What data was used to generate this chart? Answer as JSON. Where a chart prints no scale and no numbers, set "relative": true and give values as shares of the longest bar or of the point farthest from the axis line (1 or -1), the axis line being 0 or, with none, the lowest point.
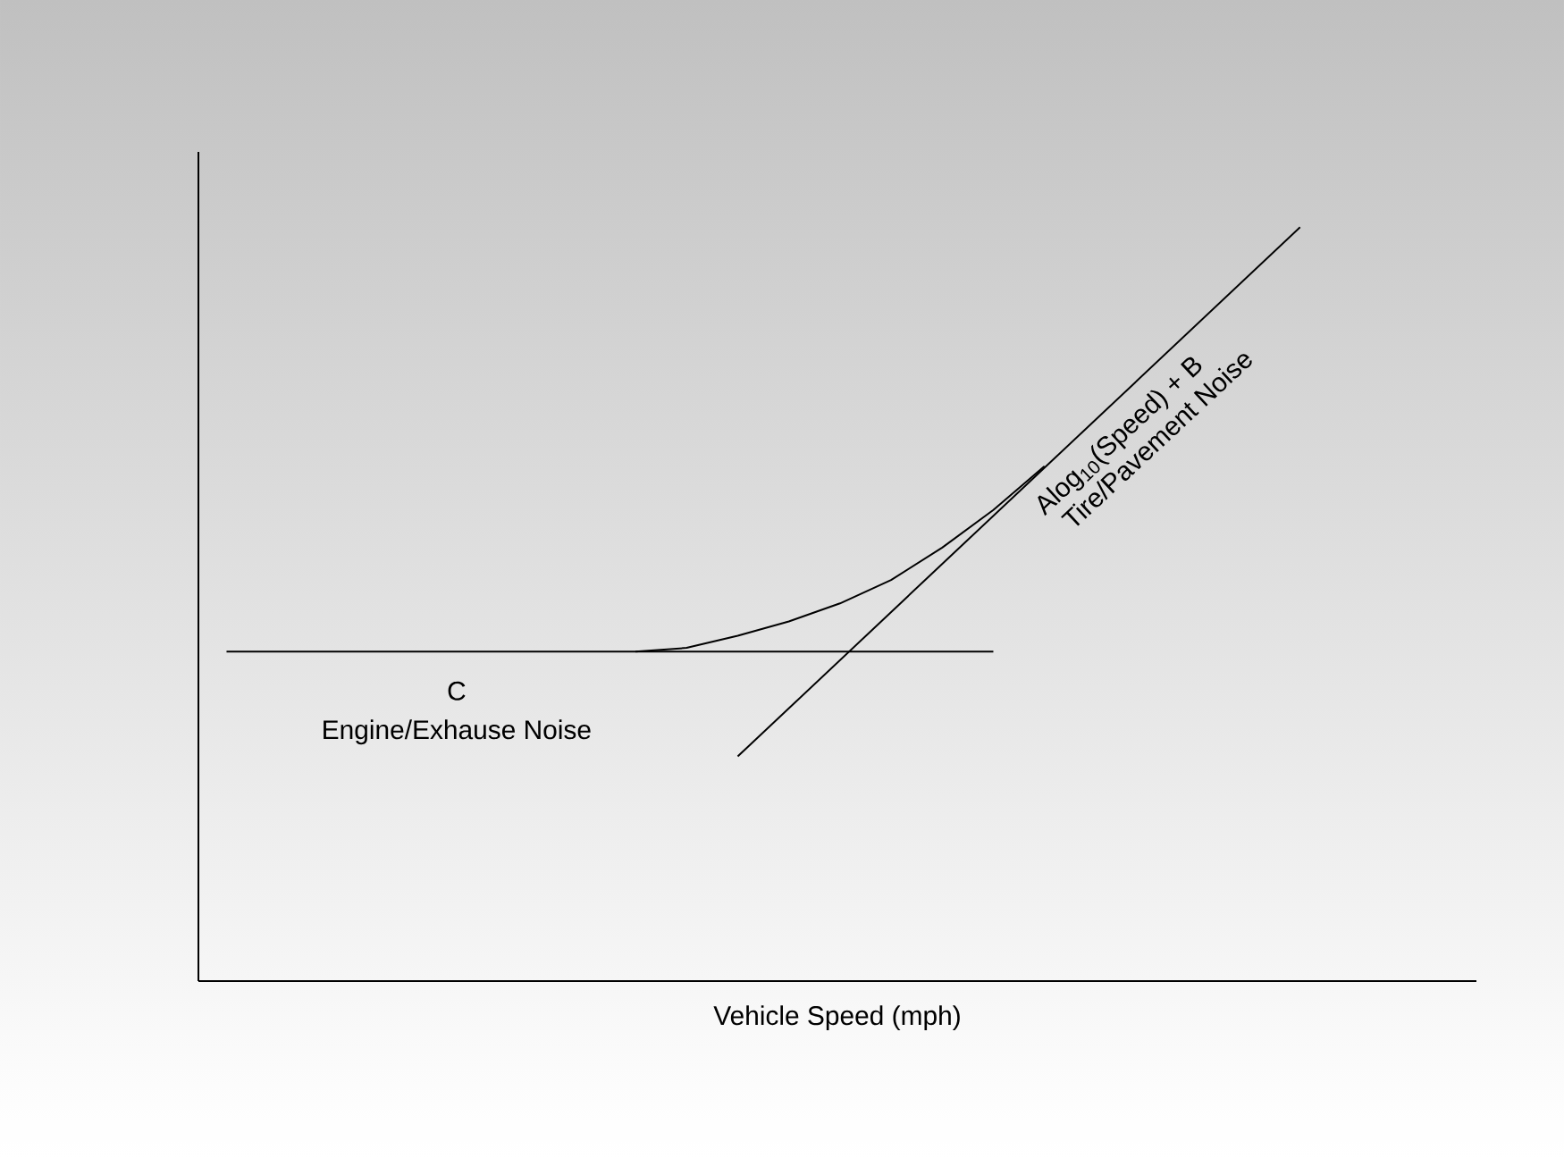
{
  "chart_data": {
    "type": "line",
    "relative": true,
    "xlabel": "Vehicle Speed (mph)",
    "categories": [
      null,
      null,
      null,
      null,
      null,
      null,
      null,
      null,
      null,
      null,
      null,
      null,
      null,
      null,
      null,
      null,
      null,
      null,
      null,
      null,
      null,
      null
    ],
    "series": [
      {
        "color": "#000000",
        "values": [
          0.437,
          null,
          null,
          null,
          null,
          null,
          null,
          null,
          null,
          null,
          null,
          null,
          null,
          null,
          null,
          0.437,
          null,
          null,
          null,
          null,
          null,
          null
        ]
      },
      {
        "color": "#000000",
        "values": [
          null,
          null,
          null,
          null,
          null,
          null,
          null,
          null,
          null,
          null,
          0.298,
          null,
          null,
          null,
          null,
          null,
          null,
          null,
          null,
          null,
          null,
          1
        ]
      },
      {
        "color": "#000000",
        "values": [
          null,
          null,
          null,
          null,
          null,
          null,
          null,
          null,
          0.437,
          0.442,
          0.458,
          0.477,
          0.501,
          0.532,
          0.575,
          0.625,
          0.683,
          null,
          null,
          null,
          null,
          null
        ]
      }
    ],
    "annotations": [
      "C",
      "Engine/Exhause Noise",
      "Alog$_{10}$(Speed) + B",
      "Tire/Pavement Noise"
    ]
  }
}
